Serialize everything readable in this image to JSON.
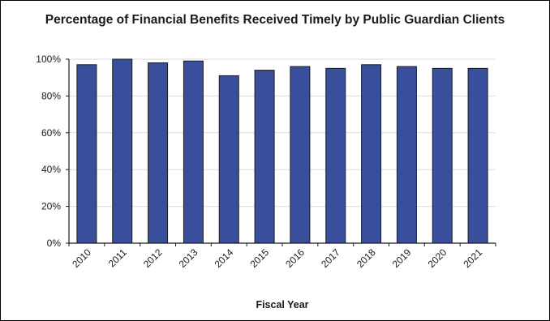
{
  "chart_data": {
    "type": "bar",
    "title": "Percentage of Financial Benefits Received Timely by Public Guardian Clients",
    "xlabel": "Fiscal Year",
    "ylabel": "",
    "categories": [
      "2010",
      "2011",
      "2012",
      "2013",
      "2014",
      "2015",
      "2016",
      "2017",
      "2018",
      "2019",
      "2020",
      "2021"
    ],
    "values": [
      97,
      100,
      98,
      99,
      91,
      94,
      96,
      95,
      97,
      96,
      95,
      95
    ],
    "ylim": [
      0,
      100
    ],
    "yticks": [
      0,
      20,
      40,
      60,
      80,
      100
    ],
    "ytick_labels": [
      "0%",
      "20%",
      "40%",
      "60%",
      "80%",
      "100%"
    ],
    "grid": true,
    "legend": "none",
    "colors": {
      "bar_fill": "#3a4f9c",
      "bar_stroke": "#1b1b1b",
      "grid": "#d9d9d9",
      "axis": "#1a1a1a"
    }
  }
}
